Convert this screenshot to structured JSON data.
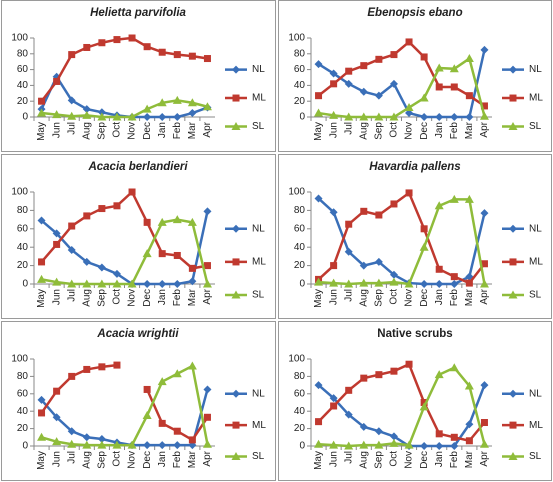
{
  "chart_data": [
    {
      "type": "line",
      "title": "Helietta parvifolia",
      "italic": true,
      "legend": "right",
      "categories": [
        "May",
        "Jun",
        "Jul",
        "Aug",
        "Sep",
        "Oct",
        "Nov",
        "Dec",
        "Jan",
        "Feb",
        "Mar",
        "Apr"
      ],
      "ylim": [
        0,
        100
      ],
      "yticks": [
        0,
        20,
        40,
        60,
        80,
        100
      ],
      "series": [
        {
          "name": "NL",
          "color": "#3a6fb8",
          "marker": "diamond",
          "values": [
            10,
            51,
            21,
            10,
            6,
            2,
            0,
            0,
            0,
            0,
            5,
            12
          ]
        },
        {
          "name": "ML",
          "color": "#c0392f",
          "marker": "square",
          "values": [
            20,
            45,
            79,
            88,
            94,
            98,
            100,
            89,
            82,
            79,
            77,
            74
          ]
        },
        {
          "name": "SL",
          "color": "#8fbc3a",
          "marker": "triangle",
          "values": [
            5,
            3,
            1,
            2,
            0,
            0,
            0,
            10,
            18,
            21,
            18,
            13
          ]
        }
      ]
    },
    {
      "type": "line",
      "title": "Ebenopsis ebano",
      "italic": true,
      "legend": "right",
      "categories": [
        "May",
        "Jun",
        "Jul",
        "Aug",
        "Sep",
        "Oct",
        "Nov",
        "Dec",
        "Jan",
        "Feb",
        "Mar",
        "Apr"
      ],
      "ylim": [
        0,
        100
      ],
      "yticks": [
        0,
        20,
        40,
        60,
        80,
        100
      ],
      "series": [
        {
          "name": "NL",
          "color": "#3a6fb8",
          "marker": "diamond",
          "values": [
            67,
            55,
            42,
            32,
            27,
            42,
            5,
            0,
            0,
            0,
            0,
            85
          ]
        },
        {
          "name": "ML",
          "color": "#c0392f",
          "marker": "square",
          "values": [
            27,
            42,
            58,
            65,
            73,
            79,
            95,
            76,
            38,
            38,
            27,
            14
          ]
        },
        {
          "name": "SL",
          "color": "#8fbc3a",
          "marker": "triangle",
          "values": [
            5,
            2,
            0,
            0,
            0,
            0,
            12,
            24,
            62,
            61,
            74,
            1
          ]
        }
      ]
    },
    {
      "type": "line",
      "title": "Acacia berlandieri",
      "italic": true,
      "legend": "right",
      "categories": [
        "May",
        "Jun",
        "Jul",
        "Aug",
        "Sep",
        "Oct",
        "Nov",
        "Dec",
        "Jan",
        "Feb",
        "Mar",
        "Apr"
      ],
      "ylim": [
        0,
        100
      ],
      "yticks": [
        0,
        20,
        40,
        60,
        80,
        100
      ],
      "series": [
        {
          "name": "NL",
          "color": "#3a6fb8",
          "marker": "diamond",
          "values": [
            69,
            55,
            37,
            24,
            18,
            11,
            0,
            0,
            0,
            0,
            3,
            79
          ]
        },
        {
          "name": "ML",
          "color": "#c0392f",
          "marker": "square",
          "values": [
            24,
            43,
            63,
            74,
            82,
            85,
            100,
            67,
            33,
            31,
            17,
            20
          ]
        },
        {
          "name": "SL",
          "color": "#8fbc3a",
          "marker": "triangle",
          "values": [
            5,
            2,
            0,
            0,
            0,
            0,
            0,
            33,
            67,
            70,
            67,
            0
          ]
        }
      ]
    },
    {
      "type": "line",
      "title": "Havardia pallens",
      "italic": true,
      "legend": "right",
      "categories": [
        "May",
        "Jun",
        "Jul",
        "Aug",
        "Sep",
        "Oct",
        "Nov",
        "Dec",
        "Jan",
        "Feb",
        "Mar",
        "Apr"
      ],
      "ylim": [
        0,
        100
      ],
      "yticks": [
        0,
        20,
        40,
        60,
        80,
        100
      ],
      "series": [
        {
          "name": "NL",
          "color": "#3a6fb8",
          "marker": "diamond",
          "values": [
            93,
            78,
            35,
            20,
            24,
            10,
            1,
            0,
            0,
            0,
            8,
            77
          ]
        },
        {
          "name": "ML",
          "color": "#c0392f",
          "marker": "square",
          "values": [
            5,
            20,
            65,
            79,
            75,
            87,
            99,
            60,
            16,
            8,
            1,
            22
          ]
        },
        {
          "name": "SL",
          "color": "#8fbc3a",
          "marker": "triangle",
          "values": [
            2,
            1,
            0,
            1,
            1,
            2,
            0,
            40,
            85,
            92,
            92,
            0
          ]
        }
      ]
    },
    {
      "type": "line",
      "title": "Acacia wrightii",
      "italic": true,
      "legend": "right",
      "categories": [
        "May",
        "Jun",
        "Jul",
        "Aug",
        "Sep",
        "Oct",
        "Nov",
        "Dec",
        "Jan",
        "Feb",
        "Mar",
        "Apr"
      ],
      "ylim": [
        0,
        100
      ],
      "yticks": [
        0,
        20,
        40,
        60,
        80,
        100
      ],
      "series": [
        {
          "name": "NL",
          "color": "#3a6fb8",
          "marker": "diamond",
          "values": [
            53,
            33,
            17,
            10,
            8,
            4,
            1,
            1,
            1,
            1,
            1,
            65
          ]
        },
        {
          "name": "ML",
          "color": "#c0392f",
          "marker": "square",
          "values": [
            38,
            63,
            80,
            88,
            91,
            93,
            null,
            65,
            26,
            17,
            7,
            33
          ]
        },
        {
          "name": "SL",
          "color": "#8fbc3a",
          "marker": "triangle",
          "values": [
            10,
            5,
            2,
            1,
            1,
            1,
            1,
            35,
            74,
            83,
            92,
            2
          ]
        }
      ]
    },
    {
      "type": "line",
      "title": "Native scrubs",
      "italic": false,
      "legend": "right",
      "categories": [
        "May",
        "Jun",
        "Jul",
        "Aug",
        "Sep",
        "Oct",
        "Nov",
        "Dec",
        "Jan",
        "Feb",
        "Mar",
        "Apr"
      ],
      "ylim": [
        0,
        100
      ],
      "yticks": [
        0,
        20,
        40,
        60,
        80,
        100
      ],
      "series": [
        {
          "name": "NL",
          "color": "#3a6fb8",
          "marker": "diamond",
          "values": [
            70,
            55,
            36,
            22,
            17,
            11,
            0,
            0,
            0,
            0,
            25,
            70
          ]
        },
        {
          "name": "ML",
          "color": "#c0392f",
          "marker": "square",
          "values": [
            28,
            46,
            64,
            78,
            82,
            86,
            94,
            50,
            14,
            10,
            6,
            27
          ]
        },
        {
          "name": "SL",
          "color": "#8fbc3a",
          "marker": "triangle",
          "values": [
            2,
            1,
            0,
            1,
            1,
            3,
            1,
            45,
            82,
            90,
            69,
            2
          ]
        }
      ]
    }
  ]
}
